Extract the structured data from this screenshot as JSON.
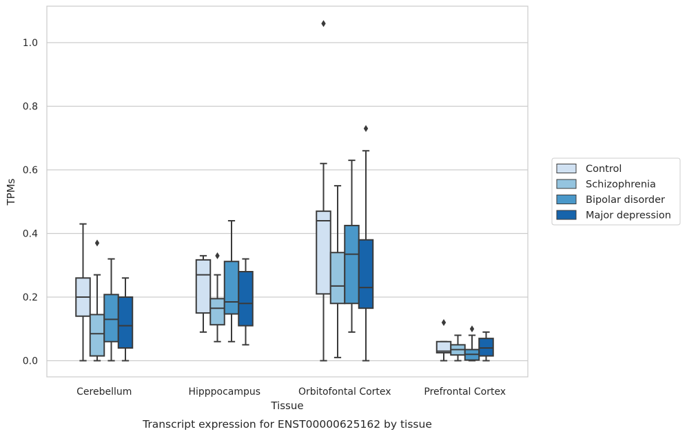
{
  "chart_data": {
    "type": "boxplot",
    "xlabel": "Tissue",
    "ylabel": "TPMs",
    "caption": "Transcript expression for ENST00000625162 by tissue",
    "ylim": [
      -0.05,
      1.12
    ],
    "yticks": [
      0.0,
      0.2,
      0.4,
      0.6,
      0.8,
      1.0
    ],
    "ytick_labels": [
      "0.0",
      "0.2",
      "0.4",
      "0.6",
      "0.8",
      "1.0"
    ],
    "grid": true,
    "legend_position": "right-center",
    "categories": [
      "Cerebellum",
      "Hipppocampus",
      "Orbitofontal Cortex",
      "Prefrontal Cortex"
    ],
    "series": [
      {
        "name": "Control",
        "color": "#d0e1f2",
        "boxes": [
          {
            "whislo": 0.0,
            "q1": 0.14,
            "med": 0.2,
            "q3": 0.26,
            "whishi": 0.43,
            "fliers": []
          },
          {
            "whislo": 0.09,
            "q1": 0.15,
            "med": 0.27,
            "q3": 0.317,
            "whishi": 0.33,
            "fliers": []
          },
          {
            "whislo": 0.0,
            "q1": 0.21,
            "med": 0.44,
            "q3": 0.47,
            "whishi": 0.62,
            "fliers": [
              1.06
            ]
          },
          {
            "whislo": 0.0,
            "q1": 0.025,
            "med": 0.03,
            "q3": 0.06,
            "whishi": 0.06,
            "fliers": [
              0.12
            ]
          }
        ]
      },
      {
        "name": "Schizophrenia",
        "color": "#94c4df",
        "boxes": [
          {
            "whislo": 0.0,
            "q1": 0.015,
            "med": 0.085,
            "q3": 0.145,
            "whishi": 0.27,
            "fliers": [
              0.37
            ]
          },
          {
            "whislo": 0.06,
            "q1": 0.113,
            "med": 0.165,
            "q3": 0.195,
            "whishi": 0.27,
            "fliers": [
              0.33
            ]
          },
          {
            "whislo": 0.01,
            "q1": 0.18,
            "med": 0.235,
            "q3": 0.34,
            "whishi": 0.55,
            "fliers": []
          },
          {
            "whislo": 0.0,
            "q1": 0.018,
            "med": 0.035,
            "q3": 0.05,
            "whishi": 0.08,
            "fliers": []
          }
        ]
      },
      {
        "name": "Bipolar disorder",
        "color": "#4a98c9",
        "boxes": [
          {
            "whislo": 0.0,
            "q1": 0.06,
            "med": 0.13,
            "q3": 0.208,
            "whishi": 0.32,
            "fliers": []
          },
          {
            "whislo": 0.06,
            "q1": 0.147,
            "med": 0.185,
            "q3": 0.312,
            "whishi": 0.44,
            "fliers": []
          },
          {
            "whislo": 0.09,
            "q1": 0.18,
            "med": 0.335,
            "q3": 0.425,
            "whishi": 0.63,
            "fliers": []
          },
          {
            "whislo": 0.0,
            "q1": 0.002,
            "med": 0.02,
            "q3": 0.035,
            "whishi": 0.08,
            "fliers": [
              0.1
            ]
          }
        ]
      },
      {
        "name": "Major depression",
        "color": "#1764ab",
        "boxes": [
          {
            "whislo": 0.0,
            "q1": 0.04,
            "med": 0.11,
            "q3": 0.2,
            "whishi": 0.26,
            "fliers": []
          },
          {
            "whislo": 0.05,
            "q1": 0.11,
            "med": 0.18,
            "q3": 0.28,
            "whishi": 0.32,
            "fliers": []
          },
          {
            "whislo": 0.0,
            "q1": 0.165,
            "med": 0.23,
            "q3": 0.38,
            "whishi": 0.66,
            "fliers": [
              0.73
            ]
          },
          {
            "whislo": 0.0,
            "q1": 0.015,
            "med": 0.04,
            "q3": 0.07,
            "whishi": 0.09,
            "fliers": []
          }
        ]
      }
    ]
  }
}
